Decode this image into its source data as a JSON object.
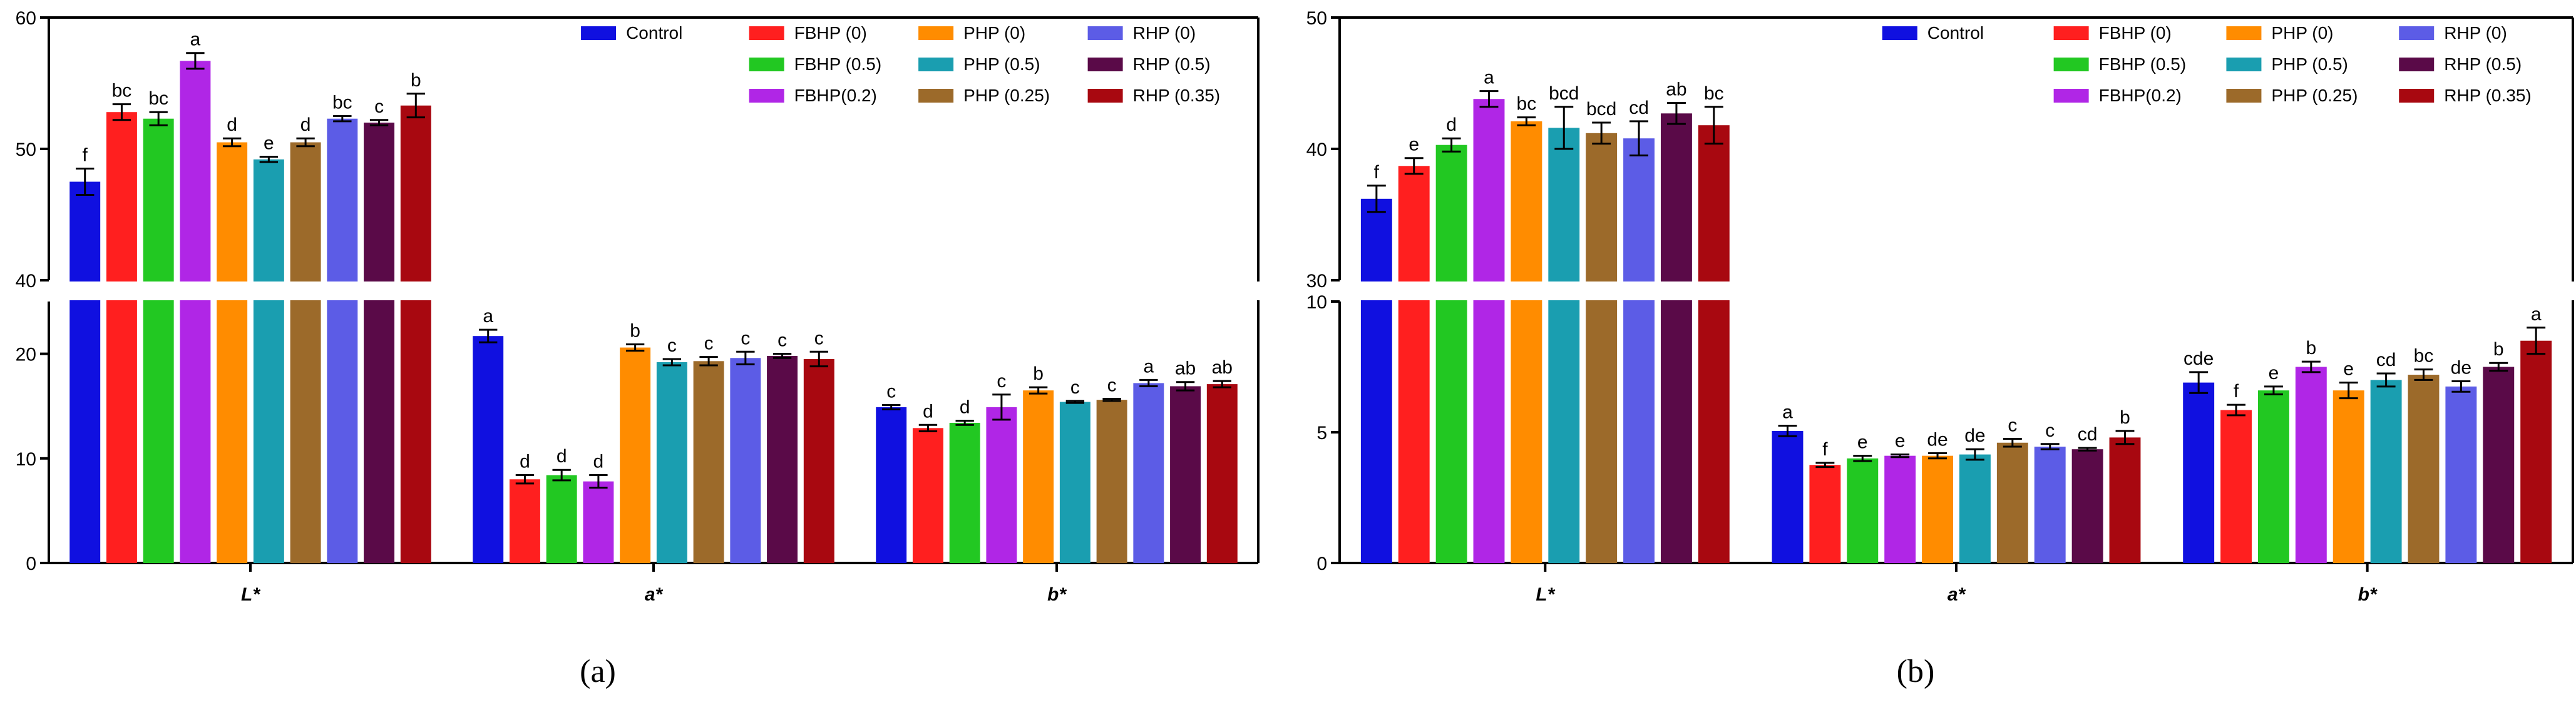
{
  "figure": {
    "panel_captions": [
      "(a)",
      "(b)"
    ]
  },
  "legend_entries": [
    {
      "label": "Control",
      "color": "#1010e0"
    },
    {
      "label": "FBHP (0)",
      "color": "#ff1f1f"
    },
    {
      "label": "FBHP (0.5)",
      "color": "#22c822"
    },
    {
      "label": "FBHP(0.2)",
      "color": "#b026e6"
    },
    {
      "label": "PHP (0)",
      "color": "#ff8c00"
    },
    {
      "label": "PHP (0.5)",
      "color": "#1a9eb0"
    },
    {
      "label": "PHP (0.25)",
      "color": "#9c6a2a"
    },
    {
      "label": "RHP (0)",
      "color": "#5c5ce6"
    },
    {
      "label": "RHP (0.5)",
      "color": "#5a0a48"
    },
    {
      "label": "RHP (0.35)",
      "color": "#a80810"
    }
  ],
  "chart_data": [
    {
      "panel": "(a)",
      "type": "bar",
      "categories": [
        "L*",
        "a*",
        "b*"
      ],
      "axis_break": true,
      "lower_segment": {
        "ylim": [
          0,
          25
        ],
        "ticks": [
          0,
          10,
          20
        ]
      },
      "upper_segment": {
        "ylim": [
          40,
          60
        ],
        "ticks": [
          40,
          50,
          60
        ]
      },
      "series": [
        {
          "name": "Control",
          "values": [
            47.5,
            21.7,
            14.9
          ],
          "errors": [
            1.0,
            0.6,
            0.2
          ],
          "letters": [
            "f",
            "a",
            "c"
          ]
        },
        {
          "name": "FBHP (0)",
          "values": [
            52.8,
            8.0,
            12.9
          ],
          "errors": [
            0.6,
            0.4,
            0.3
          ],
          "letters": [
            "bc",
            "d",
            "d"
          ]
        },
        {
          "name": "FBHP (0.5)",
          "values": [
            52.3,
            8.4,
            13.4
          ],
          "errors": [
            0.5,
            0.5,
            0.2
          ],
          "letters": [
            "bc",
            "d",
            "d"
          ]
        },
        {
          "name": "FBHP(0.2)",
          "values": [
            56.7,
            7.8,
            14.9
          ],
          "errors": [
            0.6,
            0.6,
            1.2
          ],
          "letters": [
            "a",
            "d",
            "c"
          ]
        },
        {
          "name": "PHP (0)",
          "values": [
            50.5,
            20.6,
            16.5
          ],
          "errors": [
            0.3,
            0.3,
            0.3
          ],
          "letters": [
            "d",
            "b",
            "b"
          ]
        },
        {
          "name": "PHP (0.5)",
          "values": [
            49.2,
            19.2,
            15.4
          ],
          "errors": [
            0.2,
            0.3,
            0.1
          ],
          "letters": [
            "e",
            "c",
            "c"
          ]
        },
        {
          "name": "PHP (0.25)",
          "values": [
            50.5,
            19.3,
            15.6
          ],
          "errors": [
            0.3,
            0.4,
            0.1
          ],
          "letters": [
            "d",
            "c",
            "c"
          ]
        },
        {
          "name": "RHP (0)",
          "values": [
            52.3,
            19.6,
            17.2
          ],
          "errors": [
            0.2,
            0.6,
            0.3
          ],
          "letters": [
            "bc",
            "c",
            "a"
          ]
        },
        {
          "name": "RHP (0.5)",
          "values": [
            52.0,
            19.8,
            16.9
          ],
          "errors": [
            0.2,
            0.2,
            0.4
          ],
          "letters": [
            "c",
            "c",
            "ab"
          ]
        },
        {
          "name": "RHP (0.35)",
          "values": [
            53.3,
            19.5,
            17.1
          ],
          "errors": [
            0.9,
            0.7,
            0.3
          ],
          "letters": [
            "b",
            "c",
            "ab"
          ]
        }
      ]
    },
    {
      "panel": "(b)",
      "type": "bar",
      "categories": [
        "L*",
        "a*",
        "b*"
      ],
      "axis_break": true,
      "lower_segment": {
        "ylim": [
          0,
          10
        ],
        "ticks": [
          0,
          5,
          10
        ]
      },
      "upper_segment": {
        "ylim": [
          30,
          50
        ],
        "ticks": [
          30,
          40,
          50
        ]
      },
      "series": [
        {
          "name": "Control",
          "values": [
            36.2,
            5.05,
            6.9
          ],
          "errors": [
            1.0,
            0.2,
            0.4
          ],
          "letters": [
            "f",
            "a",
            "cde"
          ]
        },
        {
          "name": "FBHP (0)",
          "values": [
            38.7,
            3.75,
            5.85
          ],
          "errors": [
            0.6,
            0.08,
            0.2
          ],
          "letters": [
            "e",
            "f",
            "f"
          ]
        },
        {
          "name": "FBHP (0.5)",
          "values": [
            40.3,
            4.0,
            6.6
          ],
          "errors": [
            0.5,
            0.1,
            0.15
          ],
          "letters": [
            "d",
            "e",
            "e"
          ]
        },
        {
          "name": "FBHP(0.2)",
          "values": [
            43.8,
            4.1,
            7.5
          ],
          "errors": [
            0.6,
            0.05,
            0.2
          ],
          "letters": [
            "a",
            "e",
            "b"
          ]
        },
        {
          "name": "PHP (0)",
          "values": [
            42.1,
            4.1,
            6.6
          ],
          "errors": [
            0.3,
            0.1,
            0.3
          ],
          "letters": [
            "bc",
            "de",
            "e"
          ]
        },
        {
          "name": "PHP (0.5)",
          "values": [
            41.6,
            4.15,
            7.0
          ],
          "errors": [
            1.6,
            0.2,
            0.25
          ],
          "letters": [
            "bcd",
            "de",
            "cd"
          ]
        },
        {
          "name": "PHP (0.25)",
          "values": [
            41.2,
            4.6,
            7.2
          ],
          "errors": [
            0.8,
            0.15,
            0.2
          ],
          "letters": [
            "bcd",
            "c",
            "bc"
          ]
        },
        {
          "name": "RHP (0)",
          "values": [
            40.8,
            4.45,
            6.75
          ],
          "errors": [
            1.3,
            0.1,
            0.2
          ],
          "letters": [
            "cd",
            "c",
            "de"
          ]
        },
        {
          "name": "RHP (0.5)",
          "values": [
            42.7,
            4.35,
            7.5
          ],
          "errors": [
            0.8,
            0.05,
            0.15
          ],
          "letters": [
            "ab",
            "cd",
            "b"
          ]
        },
        {
          "name": "RHP (0.35)",
          "values": [
            41.8,
            4.8,
            8.5
          ],
          "errors": [
            1.4,
            0.25,
            0.5
          ],
          "letters": [
            "bc",
            "b",
            "a"
          ]
        }
      ]
    }
  ]
}
